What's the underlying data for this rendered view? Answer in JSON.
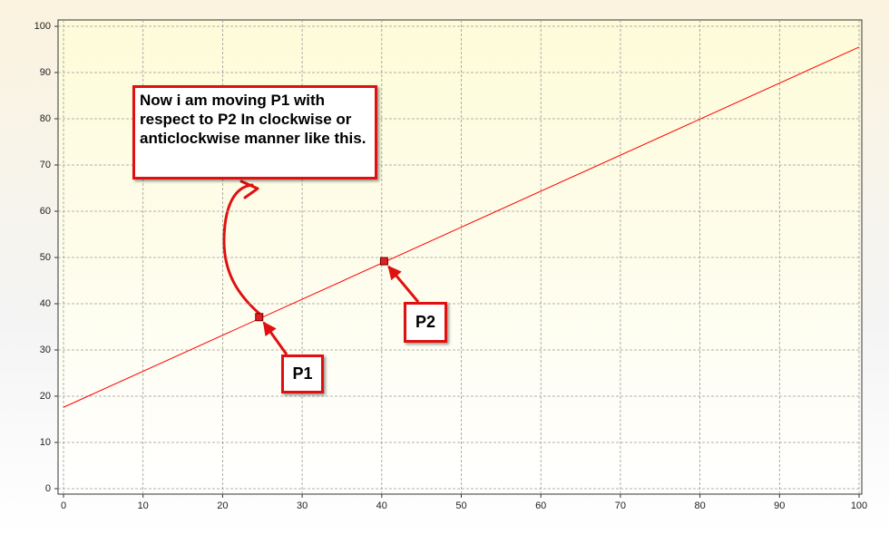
{
  "chart_data": {
    "type": "line",
    "x": [
      0,
      100
    ],
    "series": [
      {
        "color": "#ff0000",
        "values": [
          17.6,
          95.5
        ]
      }
    ],
    "points": {
      "x": [
        24.6,
        40.3
      ],
      "y": [
        37.1,
        49.2
      ],
      "color": "#e02020"
    },
    "xlim": [
      0,
      100
    ],
    "xticks": [
      0,
      10,
      20,
      30,
      40,
      50,
      60,
      70,
      80,
      90,
      100
    ],
    "ylim": [
      0,
      100
    ],
    "yticks": [
      0,
      10,
      20,
      30,
      40,
      50,
      60,
      70,
      80,
      90,
      100
    ],
    "grid": true,
    "annotations": [
      {
        "text": "Now i am moving P1 with respect to P2 In clockwise or anticlockwise manner like this."
      },
      {
        "text": "P1"
      },
      {
        "text": "P2"
      }
    ]
  }
}
